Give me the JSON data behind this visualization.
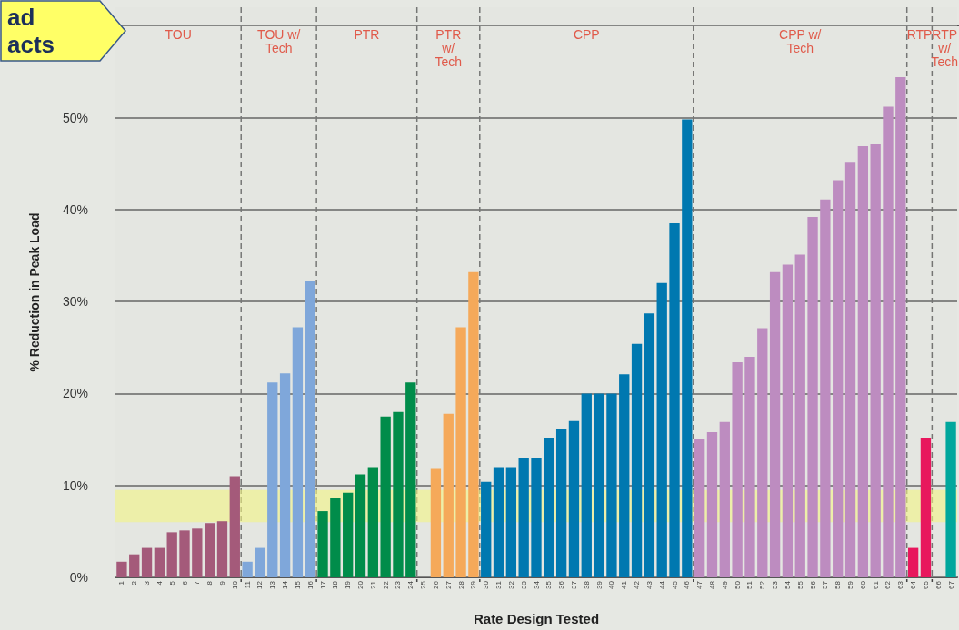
{
  "chart_data": {
    "type": "bar",
    "xlabel": "Rate Design Tested",
    "ylabel": "% Reduction in Peak Load",
    "categories": [
      "1",
      "2",
      "3",
      "4",
      "5",
      "6",
      "7",
      "8",
      "9",
      "10",
      "11",
      "12",
      "13",
      "14",
      "15",
      "16",
      "17",
      "18",
      "19",
      "20",
      "21",
      "22",
      "23",
      "24",
      "25",
      "26",
      "27",
      "28",
      "29",
      "30",
      "31",
      "32",
      "33",
      "34",
      "35",
      "36",
      "37",
      "38",
      "39",
      "40",
      "41",
      "42",
      "43",
      "44",
      "45",
      "46",
      "47",
      "48",
      "49",
      "50",
      "51",
      "52",
      "53",
      "54",
      "55",
      "56",
      "57",
      "58",
      "59",
      "60",
      "61",
      "62",
      "63",
      "64",
      "65",
      "66",
      "67"
    ],
    "values": [
      1.7,
      2.5,
      3.2,
      3.2,
      4.9,
      5.1,
      5.3,
      5.9,
      6.1,
      11,
      1.7,
      3.2,
      21.2,
      22.2,
      27.2,
      32.2,
      7.2,
      8.6,
      9.2,
      11.2,
      12,
      17.5,
      18,
      21.2,
      null,
      11.8,
      17.8,
      27.2,
      33.2,
      10.4,
      12,
      12,
      13,
      13,
      15.1,
      16.1,
      17,
      20,
      20,
      20,
      22.1,
      25.4,
      28.7,
      32,
      38.5,
      49.8,
      15,
      15.8,
      16.9,
      23.4,
      24,
      27.1,
      33.2,
      34,
      35.1,
      39.2,
      41.1,
      43.2,
      45.1,
      46.9,
      47.1,
      51.2,
      54.4,
      3.2,
      15.1,
      null,
      16.9
    ],
    "colors": [
      "#a45a7a",
      "#a45a7a",
      "#a45a7a",
      "#a45a7a",
      "#a45a7a",
      "#a45a7a",
      "#a45a7a",
      "#a45a7a",
      "#a45a7a",
      "#a45a7a",
      "#7fa7da",
      "#7fa7da",
      "#7fa7da",
      "#7fa7da",
      "#7fa7da",
      "#7fa7da",
      "#008c4a",
      "#008c4a",
      "#008c4a",
      "#008c4a",
      "#008c4a",
      "#008c4a",
      "#008c4a",
      "#008c4a",
      "#f5a95a",
      "#f5a95a",
      "#f5a95a",
      "#f5a95a",
      "#f5a95a",
      "#0078b0",
      "#0078b0",
      "#0078b0",
      "#0078b0",
      "#0078b0",
      "#0078b0",
      "#0078b0",
      "#0078b0",
      "#0078b0",
      "#0078b0",
      "#0078b0",
      "#0078b0",
      "#0078b0",
      "#0078b0",
      "#0078b0",
      "#0078b0",
      "#0078b0",
      "#bd8cc0",
      "#bd8cc0",
      "#bd8cc0",
      "#bd8cc0",
      "#bd8cc0",
      "#bd8cc0",
      "#bd8cc0",
      "#bd8cc0",
      "#bd8cc0",
      "#bd8cc0",
      "#bd8cc0",
      "#bd8cc0",
      "#bd8cc0",
      "#bd8cc0",
      "#bd8cc0",
      "#bd8cc0",
      "#bd8cc0",
      "#e8175d",
      "#e8175d",
      "#00a79d",
      "#00a79d"
    ],
    "ylim": [
      0,
      62
    ],
    "yticks": [
      {
        "value": 0,
        "label": "0%"
      },
      {
        "value": 10,
        "label": "10%"
      },
      {
        "value": 20,
        "label": "20%"
      },
      {
        "value": 30,
        "label": "30%"
      },
      {
        "value": 40,
        "label": "40%"
      },
      {
        "value": 50,
        "label": "50%"
      }
    ],
    "grid": "y",
    "bands": [
      {
        "axis": "x",
        "from": "1",
        "to": "10",
        "label": "TOU"
      },
      {
        "axis": "x",
        "from": "11",
        "to": "16",
        "label": "TOU w/\nTech"
      },
      {
        "axis": "x",
        "from": "17",
        "to": "24",
        "label": "PTR"
      },
      {
        "axis": "x",
        "from": "25",
        "to": "29",
        "label": "PTR\nw/\nTech"
      },
      {
        "axis": "x",
        "from": "30",
        "to": "46",
        "label": "CPP"
      },
      {
        "axis": "x",
        "from": "47",
        "to": "63",
        "label": "CPP w/\nTech"
      },
      {
        "axis": "x",
        "from": "64",
        "to": "65",
        "label": "RTP"
      },
      {
        "axis": "x",
        "from": "66",
        "to": "67",
        "label": "RTP\nw/\nTech"
      },
      {
        "axis": "y",
        "from": 6,
        "to": 9.5,
        "label": null,
        "color": "#ffff55"
      }
    ],
    "annotations": [
      "ad\nacts"
    ]
  }
}
